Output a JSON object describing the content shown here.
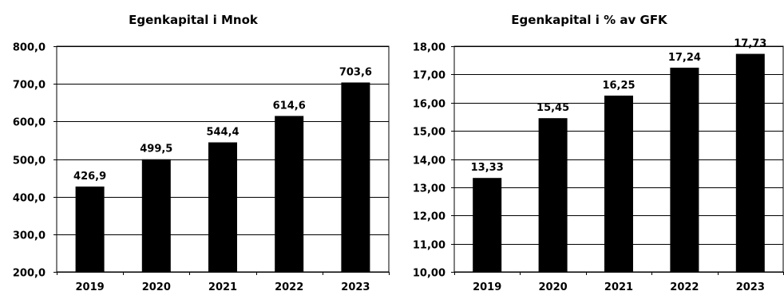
{
  "chart_data": [
    {
      "type": "bar",
      "title": "Egenkapital i Mnok",
      "categories": [
        "2019",
        "2020",
        "2021",
        "2022",
        "2023"
      ],
      "values": [
        426.9,
        499.5,
        544.4,
        614.6,
        703.6
      ],
      "value_labels": [
        "426,9",
        "499,5",
        "544,4",
        "614,6",
        "703,6"
      ],
      "ylim": [
        200,
        800
      ],
      "yticks": [
        200,
        300,
        400,
        500,
        600,
        700,
        800
      ],
      "ytick_labels": [
        "200,0",
        "300,0",
        "400,0",
        "500,0",
        "600,0",
        "700,0",
        "800,0"
      ],
      "xlabel": "",
      "ylabel": "",
      "grid": true,
      "bar_color": "#000000"
    },
    {
      "type": "bar",
      "title": "Egenkapital i % av GFK",
      "categories": [
        "2019",
        "2020",
        "2021",
        "2022",
        "2023"
      ],
      "values": [
        13.33,
        15.45,
        16.25,
        17.24,
        17.73
      ],
      "value_labels": [
        "13,33",
        "15,45",
        "16,25",
        "17,24",
        "17,73"
      ],
      "ylim": [
        10,
        18
      ],
      "yticks": [
        10,
        11,
        12,
        13,
        14,
        15,
        16,
        17,
        18
      ],
      "ytick_labels": [
        "10,00",
        "11,00",
        "12,00",
        "13,00",
        "14,00",
        "15,00",
        "16,00",
        "17,00",
        "18,00"
      ],
      "xlabel": "",
      "ylabel": "",
      "grid": true,
      "bar_color": "#000000"
    }
  ]
}
